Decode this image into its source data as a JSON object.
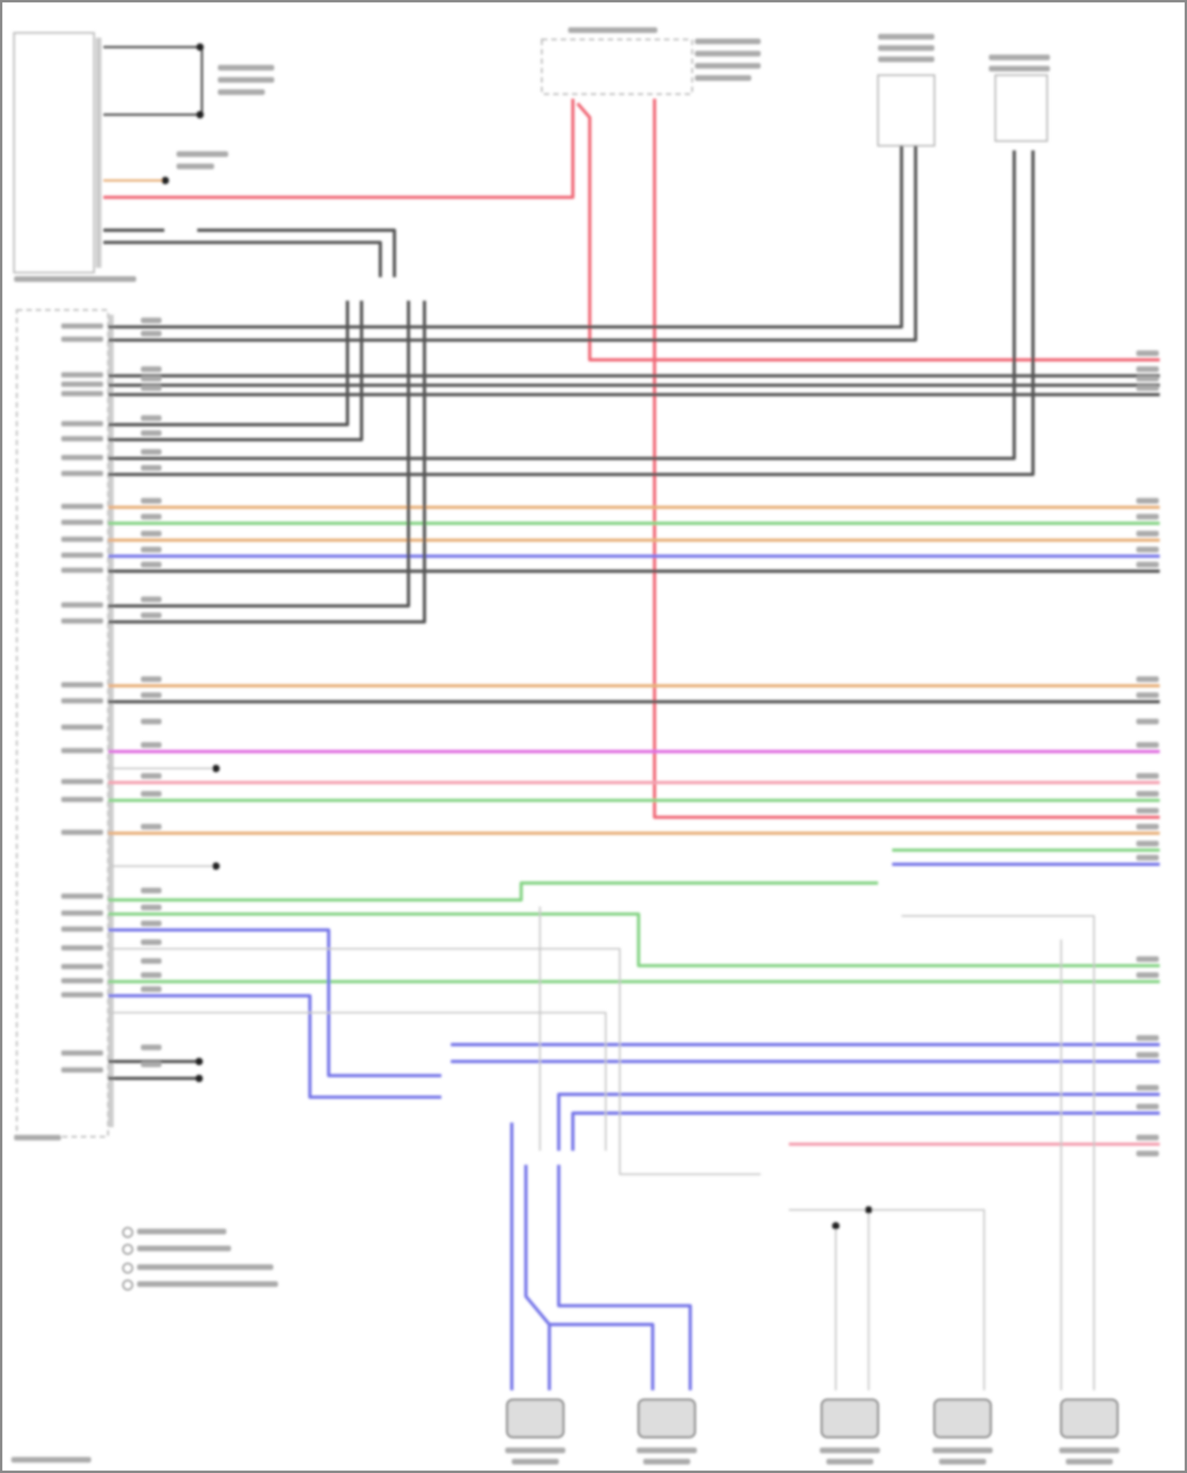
{
  "diagram": {
    "wire_colors": {
      "dark": "#555555",
      "red": "#f06a78",
      "tan": "#e8b07a",
      "green": "#86d486",
      "blue": "#7676e8",
      "magenta": "#e070e0",
      "pink": "#f4a0b0",
      "light": "#c8c8c8"
    },
    "background": "#ffffff",
    "border": "#8a8a8a"
  }
}
